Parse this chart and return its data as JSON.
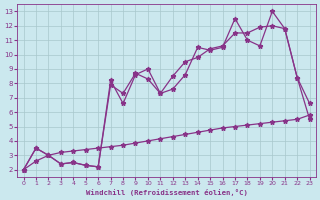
{
  "background_color": "#cbe8ee",
  "line_color": "#883388",
  "grid_color": "#a8c8cc",
  "xlabel": "Windchill (Refroidissement éolien,°C)",
  "ylim": [
    1.5,
    13.5
  ],
  "xlim": [
    -0.5,
    23.5
  ],
  "yticks": [
    2,
    3,
    4,
    5,
    6,
    7,
    8,
    9,
    10,
    11,
    12,
    13
  ],
  "xticks": [
    0,
    1,
    2,
    3,
    4,
    5,
    6,
    7,
    8,
    9,
    10,
    11,
    12,
    13,
    14,
    15,
    16,
    17,
    18,
    19,
    20,
    21,
    22,
    23
  ],
  "series": [
    {
      "x": [
        0,
        1,
        2,
        3,
        4,
        5,
        6,
        7,
        8,
        9,
        10,
        11,
        12,
        13,
        14,
        15,
        16,
        17,
        18,
        19,
        20,
        21,
        22,
        23
      ],
      "y": [
        2.0,
        3.5,
        3.0,
        2.4,
        2.5,
        2.3,
        2.2,
        8.2,
        6.6,
        8.6,
        9.0,
        7.3,
        7.6,
        8.6,
        10.5,
        10.3,
        10.5,
        12.5,
        11.0,
        10.6,
        13.0,
        11.8,
        8.4,
        6.6
      ],
      "linestyle": "-",
      "marker": "*",
      "markersize": 3.5
    },
    {
      "x": [
        0,
        1,
        2,
        3,
        4,
        5,
        6,
        7,
        8,
        9,
        10,
        11,
        12,
        13,
        14,
        15,
        16,
        17,
        18,
        19,
        20,
        21,
        22,
        23
      ],
      "y": [
        2.0,
        3.5,
        3.0,
        2.4,
        2.5,
        2.3,
        2.2,
        7.9,
        7.3,
        8.7,
        8.3,
        7.3,
        8.5,
        9.5,
        9.8,
        10.4,
        10.6,
        11.5,
        11.5,
        11.9,
        12.0,
        11.8,
        8.4,
        5.5
      ],
      "linestyle": "-",
      "marker": "*",
      "markersize": 3.5
    },
    {
      "x": [
        0,
        1,
        2,
        3,
        4,
        5,
        6,
        7,
        8,
        9,
        10,
        11,
        12,
        13,
        14,
        15,
        16,
        17,
        18,
        19,
        20,
        21,
        22,
        23
      ],
      "y": [
        2.0,
        2.6,
        3.0,
        3.2,
        3.3,
        3.4,
        3.5,
        3.6,
        3.7,
        3.85,
        4.0,
        4.15,
        4.3,
        4.45,
        4.6,
        4.75,
        4.9,
        5.0,
        5.1,
        5.2,
        5.3,
        5.4,
        5.5,
        5.8
      ],
      "linestyle": "-",
      "marker": "*",
      "markersize": 3.5
    }
  ]
}
